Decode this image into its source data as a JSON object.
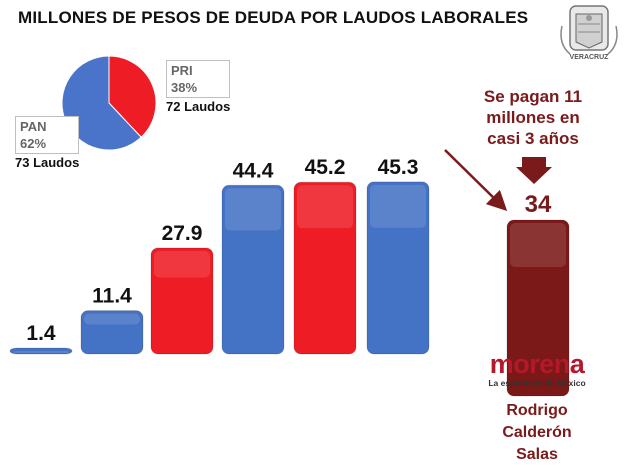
{
  "title": "MILLONES DE PESOS DE DEUDA POR LAUDOS LABORALES",
  "seal": {
    "text": "VERACRUZ"
  },
  "pie": {
    "slices": [
      {
        "party": "PAN",
        "percent_label": "62%",
        "laudos": "73 Laudos",
        "value": 62,
        "color": "#4a74c9"
      },
      {
        "party": "PRI",
        "percent_label": "38%",
        "laudos": "72 Laudos",
        "value": 38,
        "color": "#ee1c25"
      }
    ]
  },
  "chart_data": {
    "type": "bar",
    "title": "MILLONES DE PESOS DE DEUDA POR LAUDOS LABORALES",
    "categories": [
      "",
      "",
      "",
      "",
      "",
      "",
      ""
    ],
    "values": [
      1.4,
      11.4,
      27.9,
      44.4,
      45.2,
      45.3,
      34
    ],
    "value_labels": [
      "1.4",
      "11.4",
      "27.9",
      "44.4",
      "45.2",
      "45.3",
      "34"
    ],
    "colors": [
      "#4472c4",
      "#4472c4",
      "#ee1c25",
      "#4472c4",
      "#ee1c25",
      "#4472c4",
      "#7b1818"
    ],
    "ylim": [
      0,
      50
    ],
    "grid": false
  },
  "note": {
    "lines": [
      "Se pagan 11",
      "millones en",
      "casi 3 años"
    ],
    "color": "#7b1a1a"
  },
  "morena": {
    "logo_word": "morena",
    "tagline": "La esperanza de México",
    "person_lines": [
      "Rodrigo",
      "Calderón",
      "Salas"
    ]
  }
}
